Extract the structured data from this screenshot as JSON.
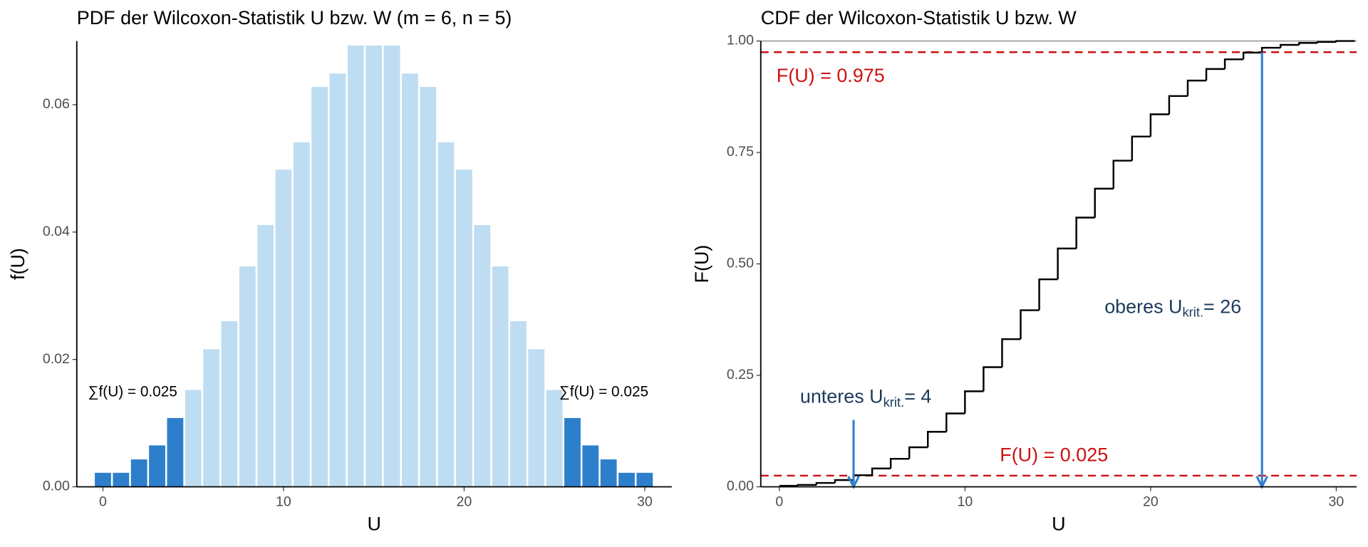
{
  "chart_data": [
    {
      "type": "bar",
      "title": "PDF der Wilcoxon-Statistik U bzw. W (m = 6, n = 5)",
      "x_label": "U",
      "y_label": "f(U)",
      "x": [
        0,
        1,
        2,
        3,
        4,
        5,
        6,
        7,
        8,
        9,
        10,
        11,
        12,
        13,
        14,
        15,
        16,
        17,
        18,
        19,
        20,
        21,
        22,
        23,
        24,
        25,
        26,
        27,
        28,
        29,
        30
      ],
      "values": [
        0.0022,
        0.0022,
        0.0043,
        0.0065,
        0.0108,
        0.0152,
        0.0216,
        0.026,
        0.0346,
        0.0411,
        0.0498,
        0.0541,
        0.0628,
        0.0649,
        0.0693,
        0.0693,
        0.0693,
        0.0649,
        0.0628,
        0.0541,
        0.0498,
        0.0411,
        0.0346,
        0.026,
        0.0216,
        0.0152,
        0.0108,
        0.0065,
        0.0043,
        0.0022,
        0.0022
      ],
      "colors": [
        "#2d7fcc",
        "#2d7fcc",
        "#2d7fcc",
        "#2d7fcc",
        "#2d7fcc",
        "#bfddf2",
        "#bfddf2",
        "#bfddf2",
        "#bfddf2",
        "#bfddf2",
        "#bfddf2",
        "#bfddf2",
        "#bfddf2",
        "#bfddf2",
        "#bfddf2",
        "#bfddf2",
        "#bfddf2",
        "#bfddf2",
        "#bfddf2",
        "#bfddf2",
        "#bfddf2",
        "#bfddf2",
        "#bfddf2",
        "#bfddf2",
        "#bfddf2",
        "#bfddf2",
        "#2d7fcc",
        "#2d7fcc",
        "#2d7fcc",
        "#2d7fcc",
        "#2d7fcc"
      ],
      "xlim": [
        -1.45,
        31.5
      ],
      "ylim": [
        0,
        0.07
      ],
      "xticks": [
        0,
        10,
        20,
        30
      ],
      "yticks": [
        {
          "value": 0,
          "label": "0.00"
        },
        {
          "value": 0.02,
          "label": "0.02"
        },
        {
          "value": 0.04,
          "label": "0.04"
        },
        {
          "value": 0.06,
          "label": "0.06"
        }
      ],
      "annotations": [
        {
          "text": "∑f(U) = 0.025"
        },
        {
          "text": "∑f(U) = 0.025"
        }
      ]
    },
    {
      "type": "step",
      "title": "CDF der Wilcoxon-Statistik U bzw. W",
      "x_label": "U",
      "y_label": "F(U)",
      "x": [
        0,
        1,
        2,
        3,
        4,
        5,
        6,
        7,
        8,
        9,
        10,
        11,
        12,
        13,
        14,
        15,
        16,
        17,
        18,
        19,
        20,
        21,
        22,
        23,
        24,
        25,
        26,
        27,
        28,
        29,
        30
      ],
      "values": [
        0.0022,
        0.0043,
        0.0087,
        0.0152,
        0.026,
        0.0411,
        0.0628,
        0.0887,
        0.1234,
        0.1645,
        0.2143,
        0.2684,
        0.3312,
        0.3961,
        0.4654,
        0.5346,
        0.6039,
        0.6688,
        0.7316,
        0.7857,
        0.8355,
        0.8766,
        0.9113,
        0.9372,
        0.9589,
        0.974,
        0.9848,
        0.9913,
        0.9957,
        0.9978,
        1
      ],
      "color": "#000000",
      "xlim": [
        -1,
        31.1
      ],
      "ylim": [
        0,
        1
      ],
      "xticks": [
        0,
        10,
        20,
        30
      ],
      "yticks": [
        {
          "value": 0,
          "label": "0.00"
        },
        {
          "value": 0.25,
          "label": "0.25"
        },
        {
          "value": 0.5,
          "label": "0.50"
        },
        {
          "value": 0.75,
          "label": "0.75"
        },
        {
          "value": 1,
          "label": "1.00"
        }
      ],
      "hlines": [
        {
          "y": 1,
          "color": "#888888"
        },
        {
          "y": 0.975,
          "color": "#cc1111",
          "label": "F(U) = 0.975"
        },
        {
          "y": 0.025,
          "color": "#cc1111",
          "label": "F(U) = 0.025"
        }
      ],
      "arrows": [
        {
          "x": 4,
          "y_from": 0.15,
          "y_to": 0,
          "color": "#2e7fcc",
          "label_main": "unteres U",
          "label_sub": "krit.",
          "label_end": "= 4"
        },
        {
          "x": 26,
          "y_from": 0.975,
          "y_to": 0,
          "color": "#2e7fcc",
          "label_main": "oberes U",
          "label_sub": "krit.",
          "label_end": "= 26"
        }
      ]
    }
  ]
}
